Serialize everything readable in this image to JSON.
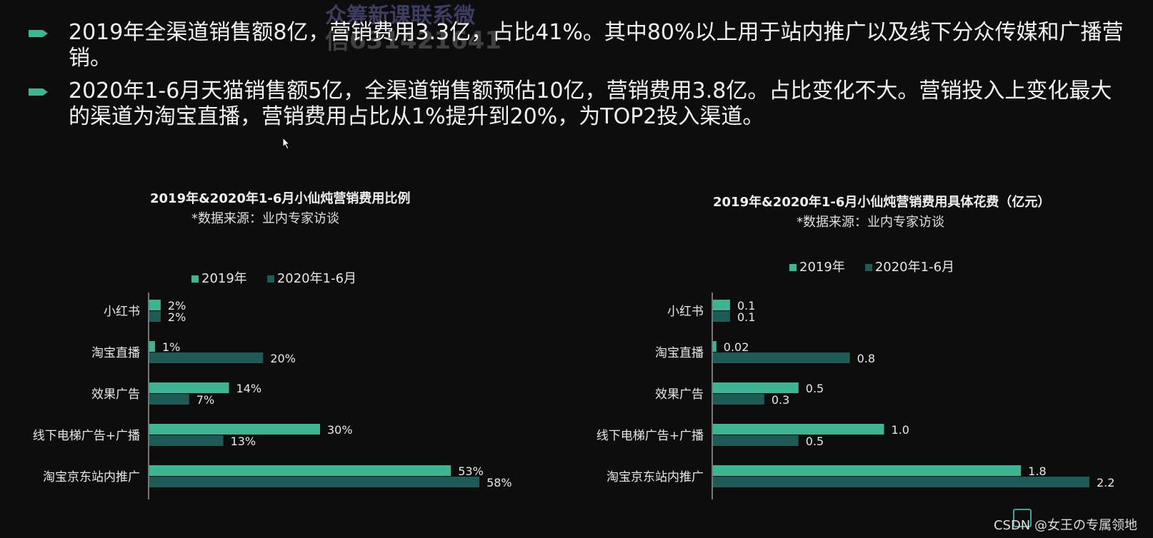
{
  "bullets": [
    "2019年全渠道销售额8亿，营销费用3.3亿，占比41%。其中80%以上用于站内推广以及线下分众传媒和广播营销。",
    "2020年1-6月天猫销售额5亿，全渠道销售额预估10亿，营销费用3.8亿。占比变化不大。营销投入上变化最大的渠道为淘宝直播，营销费用占比从1%提升到20%，为TOP2投入渠道。"
  ],
  "watermark": {
    "line1": "众筹新课联系微",
    "line2": "信631421641"
  },
  "footer": "CSDN @女王の专属领地",
  "colors": {
    "series2019": "#3db592",
    "series2020": "#1f5b56",
    "arrow": "#3db592",
    "axis": "#9a9a9a"
  },
  "chart_data": [
    {
      "type": "bar",
      "orientation": "horizontal",
      "title": "2019年&2020年1-6月小仙炖营销费用比例",
      "subtitle": "*数据来源：业内专家访谈",
      "categories": [
        "小红书",
        "淘宝直播",
        "效果广告",
        "线下电梯广告+广播",
        "淘宝京东站内推广"
      ],
      "series": [
        {
          "name": "2019年",
          "values": [
            2,
            1,
            14,
            30,
            53
          ],
          "labels": [
            "2%",
            "1%",
            "14%",
            "30%",
            "53%"
          ]
        },
        {
          "name": "2020年1-6月",
          "values": [
            2,
            20,
            7,
            13,
            58
          ],
          "labels": [
            "2%",
            "20%",
            "7%",
            "13%",
            "58%"
          ]
        }
      ],
      "xlim": [
        0,
        60
      ],
      "legend_position": "top"
    },
    {
      "type": "bar",
      "orientation": "horizontal",
      "title": "2019年&2020年1-6月小仙炖营销费用具体花费（亿元）",
      "subtitle": "*数据来源：业内专家访谈",
      "categories": [
        "小红书",
        "淘宝直播",
        "效果广告",
        "线下电梯广告+广播",
        "淘宝京东站内推广"
      ],
      "series": [
        {
          "name": "2019年",
          "values": [
            0.1,
            0.02,
            0.5,
            1.0,
            1.8
          ],
          "labels": [
            "0.1",
            "0.02",
            "0.5",
            "1.0",
            "1.8"
          ]
        },
        {
          "name": "2020年1-6月",
          "values": [
            0.1,
            0.8,
            0.3,
            0.5,
            2.2
          ],
          "labels": [
            "0.1",
            "0.8",
            "0.3",
            "0.5",
            "2.2"
          ]
        }
      ],
      "xlim": [
        0,
        2.2
      ],
      "legend_position": "top"
    }
  ]
}
